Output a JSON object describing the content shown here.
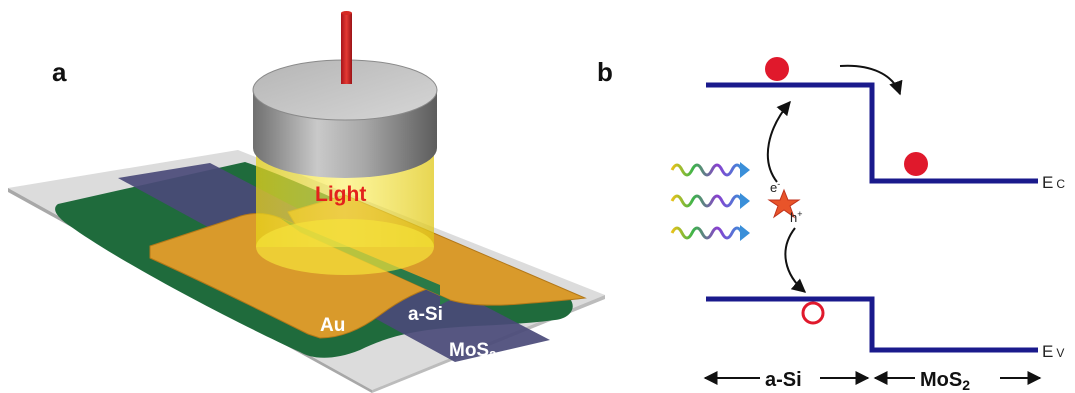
{
  "panel_a": {
    "letter": "a",
    "light_label": "Light",
    "gold_label": "Au",
    "asi_label": "a-Si",
    "mos2_label": "MoS",
    "mos2_sub": "2"
  },
  "panel_b": {
    "letter": "b",
    "electron_label": "e",
    "electron_sup": "-",
    "hole_label": "h",
    "hole_sup": "+",
    "ec_label": "E",
    "ec_sub": "C",
    "ev_label": "E",
    "ev_sub": "V",
    "region_left": "a-Si",
    "region_right": "MoS",
    "region_right_sub": "2"
  },
  "colors": {
    "band_line": "#1a1a8c",
    "electron": "#e0192c",
    "light_red": "#e3221c",
    "gold": "#d99a2b",
    "green": "#1f6b3c",
    "mos2_strip": "#4a4a78",
    "beam": "#f2e21a"
  }
}
